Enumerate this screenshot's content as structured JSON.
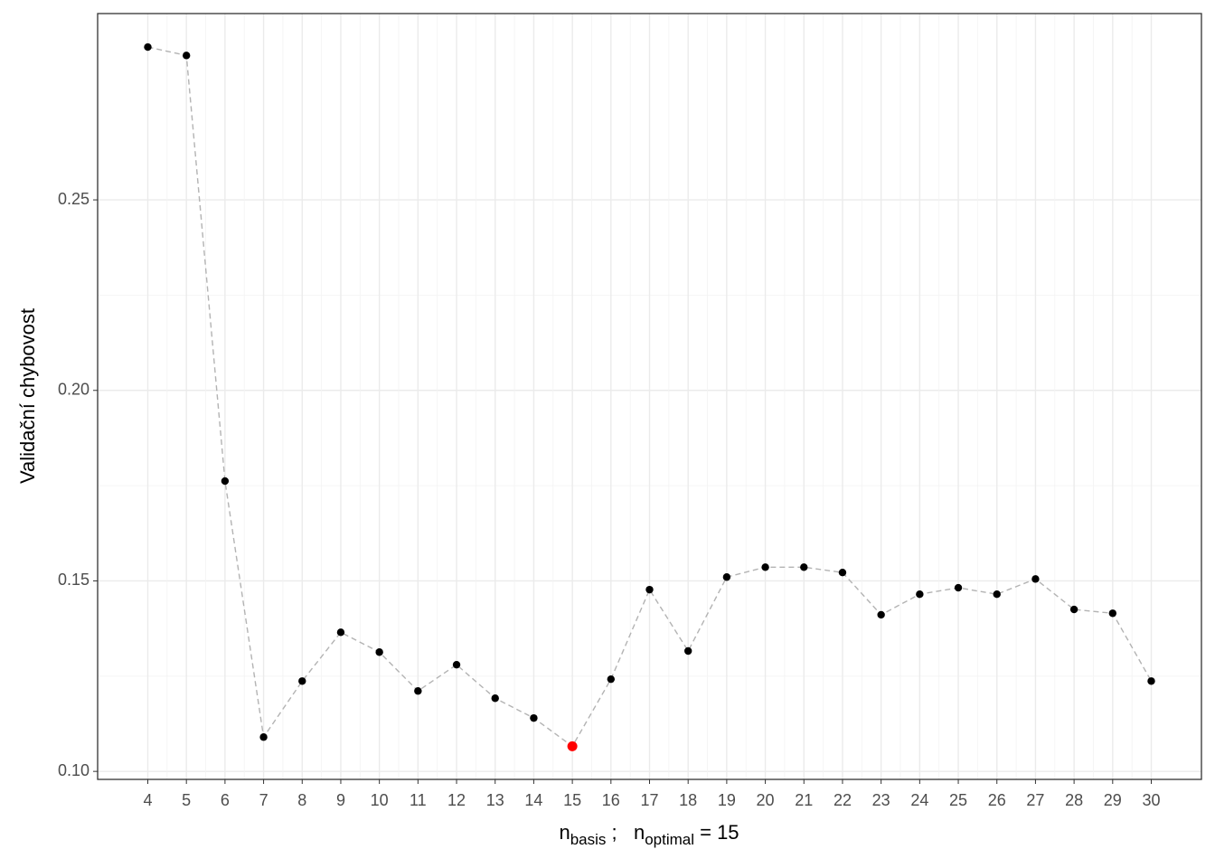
{
  "chart_data": {
    "type": "line",
    "y_label": "Validační chybovost",
    "x_label": [
      {
        "text": "n"
      },
      {
        "text": "basis",
        "sub": true
      },
      {
        "text": " ;   "
      },
      {
        "text": "n"
      },
      {
        "text": "optimal",
        "sub": true
      },
      {
        "text": " = 15"
      }
    ],
    "x": [
      4,
      5,
      6,
      7,
      8,
      9,
      10,
      11,
      12,
      13,
      14,
      15,
      16,
      17,
      18,
      19,
      20,
      21,
      22,
      23,
      24,
      25,
      26,
      27,
      28,
      29,
      30
    ],
    "series": [
      {
        "color": "#000000",
        "line_color": "#b3b3b3",
        "values": [
          0.2901,
          0.2879,
          0.1762,
          0.109,
          0.1237,
          0.1365,
          0.1313,
          0.1211,
          0.128,
          0.1192,
          0.114,
          0.1066,
          0.1242,
          0.1477,
          0.1316,
          0.151,
          0.1536,
          0.1536,
          0.1522,
          0.1411,
          0.1465,
          0.1482,
          0.1465,
          0.1505,
          0.1425,
          0.1415,
          0.1237
        ]
      }
    ],
    "highlight": {
      "x": 15,
      "color": "#ff0000"
    },
    "xlim": [
      2.7,
      31.3
    ],
    "ylim": [
      0.0979,
      0.2989
    ],
    "xticks": [
      4,
      5,
      6,
      7,
      8,
      9,
      10,
      11,
      12,
      13,
      14,
      15,
      16,
      17,
      18,
      19,
      20,
      21,
      22,
      23,
      24,
      25,
      26,
      27,
      28,
      29,
      30
    ],
    "yticks": [
      {
        "value": 0.1,
        "label": "0.10"
      },
      0.15,
      {
        "value": 0.2,
        "label": "0.20"
      },
      0.25
    ],
    "grid": true
  }
}
